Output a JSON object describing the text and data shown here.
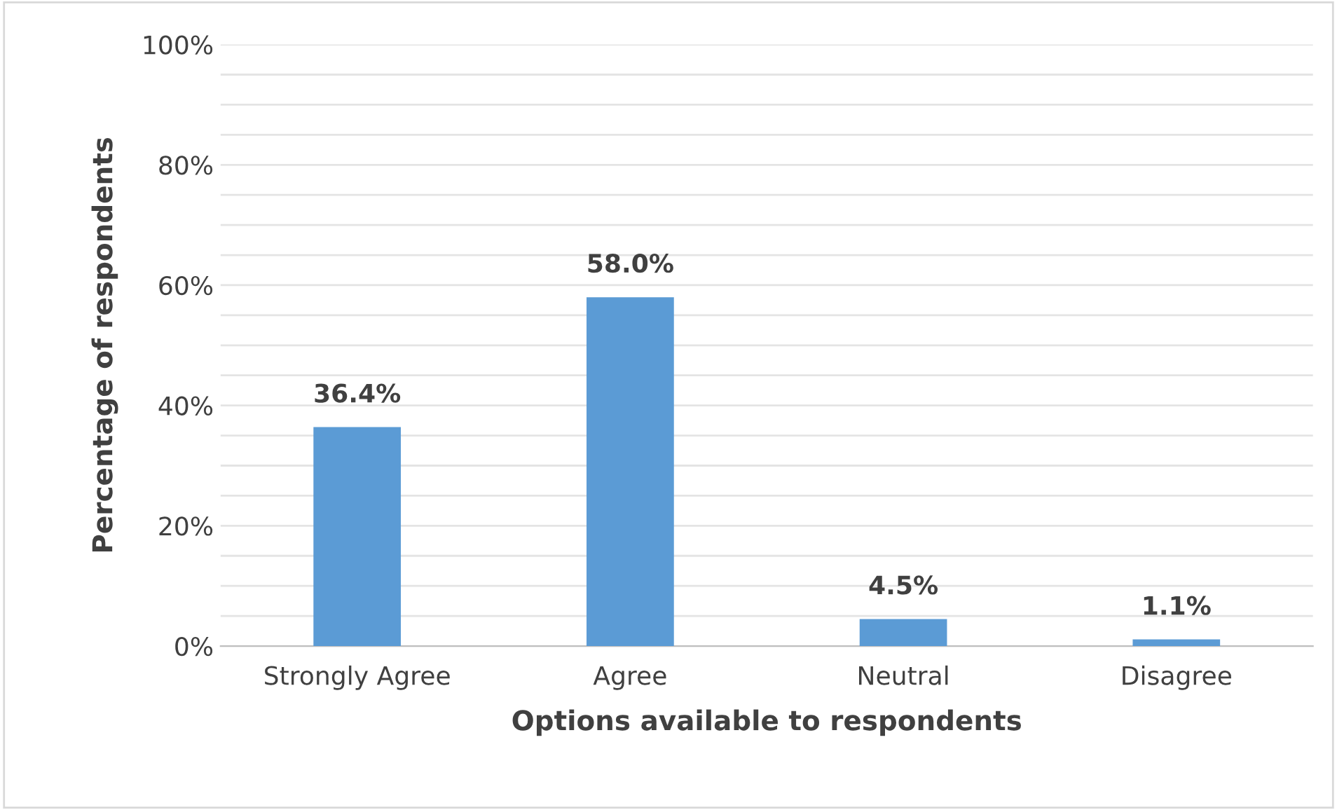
{
  "chart_data": {
    "type": "bar",
    "xlabel": "Options available to respondents",
    "ylabel": "Percentage of respondents",
    "categories": [
      "Strongly Agree",
      "Agree",
      "Neutral",
      "Disagree"
    ],
    "values": [
      36.4,
      58.0,
      4.5,
      1.1
    ],
    "value_labels": [
      "36.4%",
      "58.0%",
      "4.5%",
      "1.1%"
    ],
    "color": "#5b9bd5",
    "ylim": [
      0,
      100
    ],
    "yticks": [
      {
        "value": 0,
        "label": "0%"
      },
      {
        "value": 5,
        "label": null
      },
      {
        "value": 10,
        "label": null
      },
      {
        "value": 15,
        "label": null
      },
      {
        "value": 20,
        "label": "20%"
      },
      {
        "value": 25,
        "label": null
      },
      {
        "value": 30,
        "label": null
      },
      {
        "value": 35,
        "label": null
      },
      {
        "value": 40,
        "label": "40%"
      },
      {
        "value": 45,
        "label": null
      },
      {
        "value": 50,
        "label": null
      },
      {
        "value": 55,
        "label": null
      },
      {
        "value": 60,
        "label": "60%"
      },
      {
        "value": 65,
        "label": null
      },
      {
        "value": 70,
        "label": null
      },
      {
        "value": 75,
        "label": null
      },
      {
        "value": 80,
        "label": "80%"
      },
      {
        "value": 85,
        "label": null
      },
      {
        "value": 90,
        "label": null
      },
      {
        "value": 95,
        "label": null
      },
      {
        "value": 100,
        "label": "100%"
      }
    ],
    "grid": "y",
    "legend": false
  }
}
